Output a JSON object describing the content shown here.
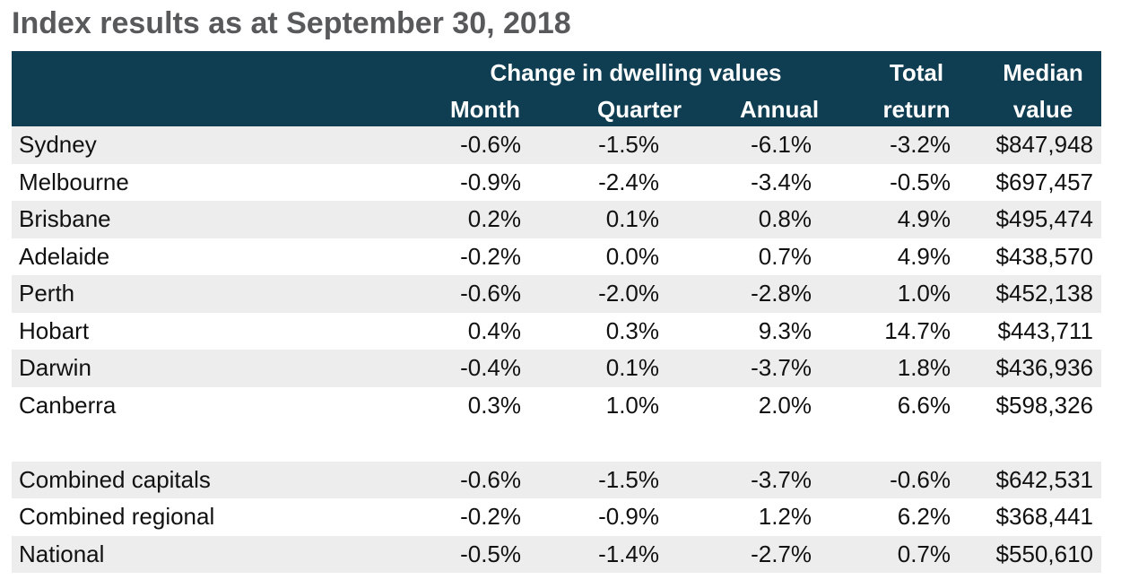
{
  "title": "Index results as at September 30, 2018",
  "header": {
    "group": "Change in dwelling values",
    "month": "Month",
    "quarter": "Quarter",
    "annual": "Annual",
    "total_line1": "Total",
    "total_line2": "return",
    "median_line1": "Median",
    "median_line2": "value"
  },
  "rows": [
    {
      "name": "Sydney",
      "month": "-0.6%",
      "quarter": "-1.5%",
      "annual": "-6.1%",
      "total": "-3.2%",
      "median": "$847,948"
    },
    {
      "name": "Melbourne",
      "month": "-0.9%",
      "quarter": "-2.4%",
      "annual": "-3.4%",
      "total": "-0.5%",
      "median": "$697,457"
    },
    {
      "name": "Brisbane",
      "month": "0.2%",
      "quarter": "0.1%",
      "annual": "0.8%",
      "total": "4.9%",
      "median": "$495,474"
    },
    {
      "name": "Adelaide",
      "month": "-0.2%",
      "quarter": "0.0%",
      "annual": "0.7%",
      "total": "4.9%",
      "median": "$438,570"
    },
    {
      "name": "Perth",
      "month": "-0.6%",
      "quarter": "-2.0%",
      "annual": "-2.8%",
      "total": "1.0%",
      "median": "$452,138"
    },
    {
      "name": "Hobart",
      "month": "0.4%",
      "quarter": "0.3%",
      "annual": "9.3%",
      "total": "14.7%",
      "median": "$443,711"
    },
    {
      "name": "Darwin",
      "month": "-0.4%",
      "quarter": "0.1%",
      "annual": "-3.7%",
      "total": "1.8%",
      "median": "$436,936"
    },
    {
      "name": "Canberra",
      "month": "0.3%",
      "quarter": "1.0%",
      "annual": "2.0%",
      "total": "6.6%",
      "median": "$598,326"
    }
  ],
  "summary_rows": [
    {
      "name": "Combined capitals",
      "month": "-0.6%",
      "quarter": "-1.5%",
      "annual": "-3.7%",
      "total": "-0.6%",
      "median": "$642,531"
    },
    {
      "name": "Combined regional",
      "month": "-0.2%",
      "quarter": "-0.9%",
      "annual": "1.2%",
      "total": "6.2%",
      "median": "$368,441"
    },
    {
      "name": "National",
      "month": "-0.5%",
      "quarter": "-1.4%",
      "annual": "-2.7%",
      "total": "0.7%",
      "median": "$550,610"
    }
  ],
  "colors": {
    "header_bg": "#0f3d52",
    "header_text": "#ffffff",
    "row_shade": "#ededed",
    "title_text": "#58595b"
  }
}
